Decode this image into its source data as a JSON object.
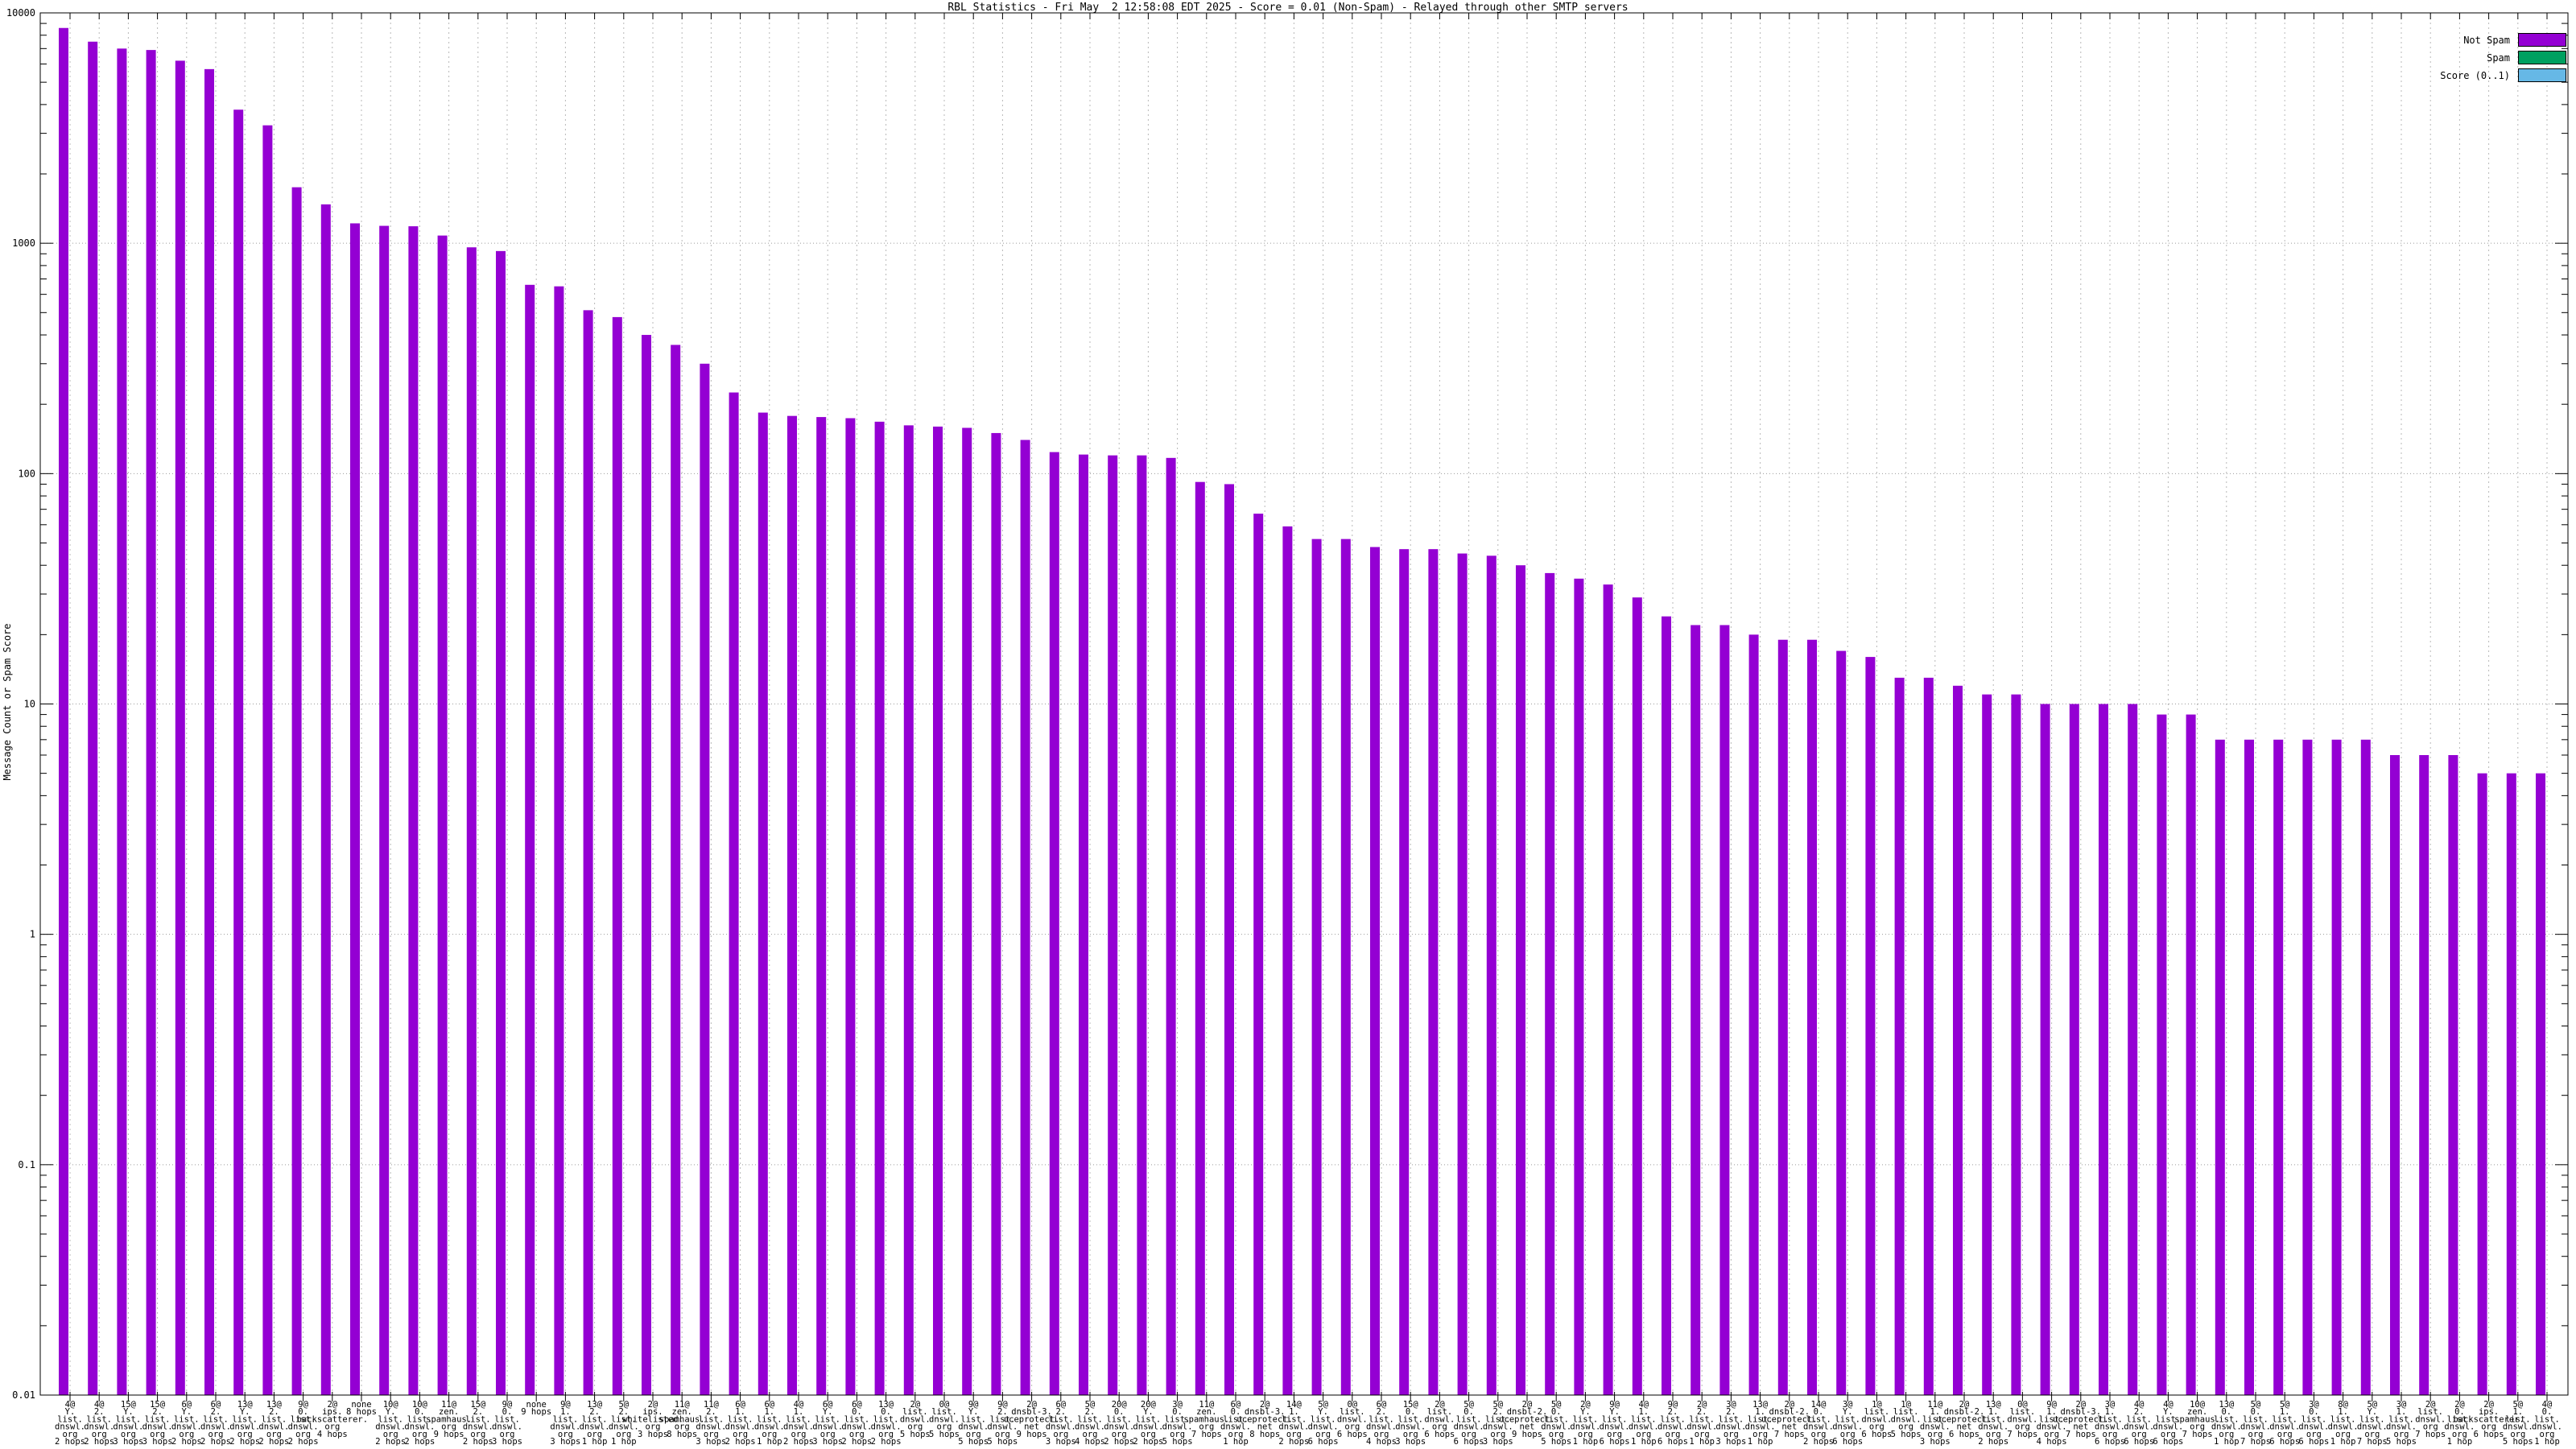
{
  "title": "RBL Statistics - Fri May  2 12:58:08 EDT 2025 - Score = 0.01 (Non-Spam) - Relayed through other SMTP servers",
  "y_axis": {
    "label": "Message Count or Spam Score",
    "tick_labels": [
      "10000",
      "1000",
      "100",
      "10",
      "1",
      "0.1",
      "0.01"
    ],
    "min": 0.01,
    "max": 10000,
    "scale": "log"
  },
  "legend": [
    {
      "label": "Not Spam",
      "color": "#9400d3"
    },
    {
      "label": "Spam",
      "color": "#00a060"
    },
    {
      "label": "Score (0..1)",
      "color": "#66b8e6"
    }
  ],
  "chart_data": {
    "type": "bar",
    "title": "RBL Statistics - Fri May  2 12:58:08 EDT 2025 - Score = 0.01 (Non-Spam) - Relayed through other SMTP servers",
    "ylabel": "Message Count or Spam Score",
    "yscale": "log",
    "ylim": [
      0.01,
      10000
    ],
    "grid": true,
    "legend_position": "top-right",
    "series_meta": {
      "not_spam_color": "#9400d3",
      "spam_color": "#00a060",
      "score_color": "#66b8e6",
      "spam_constant_value": 0,
      "score_constant_value": 0.01
    },
    "bars": [
      {
        "label_lines": [
          "4@",
          "Y.",
          "list.",
          "dnswl.",
          "org",
          "2 hops"
        ],
        "value": 8600
      },
      {
        "label_lines": [
          "4@",
          "2.",
          "list.",
          "dnswl.",
          "org",
          "2 hops"
        ],
        "value": 7500
      },
      {
        "label_lines": [
          "15@",
          "Y.",
          "list.",
          "dnswl.",
          "org",
          "3 hops"
        ],
        "value": 7000
      },
      {
        "label_lines": [
          "15@",
          "2.",
          "list.",
          "dnswl.",
          "org",
          "3 hops"
        ],
        "value": 6900
      },
      {
        "label_lines": [
          "6@",
          "Y.",
          "list.",
          "dnswl.",
          "org",
          "2 hops"
        ],
        "value": 6200
      },
      {
        "label_lines": [
          "6@",
          "2.",
          "list.",
          "dnswl.",
          "org",
          "2 hops"
        ],
        "value": 5700
      },
      {
        "label_lines": [
          "13@",
          "Y.",
          "list.",
          "dnswl.",
          "org",
          "2 hops"
        ],
        "value": 3800
      },
      {
        "label_lines": [
          "13@",
          "2.",
          "list.",
          "dnswl.",
          "org",
          "2 hops"
        ],
        "value": 3250
      },
      {
        "label_lines": [
          "9@",
          "0.",
          "list.",
          "dnswl.",
          "org",
          "2 hops"
        ],
        "value": 1750
      },
      {
        "label_lines": [
          "2@",
          "ips.",
          "backscatterer.",
          "org",
          "4 hops"
        ],
        "value": 1475
      },
      {
        "label_lines": [
          "none",
          "8 hops"
        ],
        "value": 1220
      },
      {
        "label_lines": [
          "10@",
          "Y.",
          "list.",
          "dnswl.",
          "org",
          "2 hops"
        ],
        "value": 1190
      },
      {
        "label_lines": [
          "10@",
          "0.",
          "list.",
          "dnswl.",
          "org",
          "2 hops"
        ],
        "value": 1185
      },
      {
        "label_lines": [
          "11@",
          "zen.",
          "spamhaus.",
          "org",
          "9 hops"
        ],
        "value": 1080
      },
      {
        "label_lines": [
          "15@",
          "2.",
          "list.",
          "dnswl.",
          "org",
          "2 hops"
        ],
        "value": 960
      },
      {
        "label_lines": [
          "9@",
          "0.",
          "list.",
          "dnswl.",
          "org",
          "3 hops"
        ],
        "value": 925
      },
      {
        "label_lines": [
          "none",
          "9 hops"
        ],
        "value": 660
      },
      {
        "label_lines": [
          "9@",
          "1.",
          "list.",
          "dnswl.",
          "org",
          "3 hops"
        ],
        "value": 650
      },
      {
        "label_lines": [
          "13@",
          "2.",
          "list.",
          "dnswl.",
          "org",
          "1 hop"
        ],
        "value": 512
      },
      {
        "label_lines": [
          "5@",
          "2.",
          "list.",
          "dnswl.",
          "org",
          "1 hop"
        ],
        "value": 478
      },
      {
        "label_lines": [
          "2@",
          "ips.",
          "whitelisted.",
          "org",
          "3 hops"
        ],
        "value": 400
      },
      {
        "label_lines": [
          "11@",
          "zen.",
          "spamhaus.",
          "org",
          "8 hops"
        ],
        "value": 362
      },
      {
        "label_lines": [
          "11@",
          "2.",
          "list.",
          "dnswl.",
          "org",
          "3 hops"
        ],
        "value": 300
      },
      {
        "label_lines": [
          "6@",
          "1.",
          "list.",
          "dnswl.",
          "org",
          "2 hops"
        ],
        "value": 225
      },
      {
        "label_lines": [
          "6@",
          "1.",
          "list.",
          "dnswl.",
          "org",
          "1 hop"
        ],
        "value": 184
      },
      {
        "label_lines": [
          "4@",
          "1.",
          "list.",
          "dnswl.",
          "org",
          "2 hops"
        ],
        "value": 178
      },
      {
        "label_lines": [
          "6@",
          "Y.",
          "list.",
          "dnswl.",
          "org",
          "3 hops"
        ],
        "value": 176
      },
      {
        "label_lines": [
          "6@",
          "0.",
          "list.",
          "dnswl.",
          "org",
          "2 hops"
        ],
        "value": 174
      },
      {
        "label_lines": [
          "13@",
          "0.",
          "list.",
          "dnswl.",
          "org",
          "2 hops"
        ],
        "value": 168
      },
      {
        "label_lines": [
          "2@",
          "list.",
          "dnswl.",
          "org",
          "5 hops"
        ],
        "value": 162
      },
      {
        "label_lines": [
          "0@",
          "list.",
          "dnswl.",
          "org",
          "5 hops"
        ],
        "value": 160
      },
      {
        "label_lines": [
          "9@",
          "Y.",
          "list.",
          "dnswl.",
          "org",
          "5 hops"
        ],
        "value": 158
      },
      {
        "label_lines": [
          "9@",
          "2.",
          "list.",
          "dnswl.",
          "org",
          "5 hops"
        ],
        "value": 150
      },
      {
        "label_lines": [
          "2@",
          "dnsbl-3.",
          "uceprotect.",
          "net",
          "9 hops"
        ],
        "value": 140
      },
      {
        "label_lines": [
          "6@",
          "2.",
          "list.",
          "dnswl.",
          "org",
          "3 hops"
        ],
        "value": 124
      },
      {
        "label_lines": [
          "5@",
          "2.",
          "list.",
          "dnswl.",
          "org",
          "4 hops"
        ],
        "value": 121
      },
      {
        "label_lines": [
          "20@",
          "0.",
          "list.",
          "dnswl.",
          "org",
          "2 hops"
        ],
        "value": 120
      },
      {
        "label_lines": [
          "20@",
          "Y.",
          "list.",
          "dnswl.",
          "org",
          "2 hops"
        ],
        "value": 120
      },
      {
        "label_lines": [
          "3@",
          "0.",
          "list.",
          "dnswl.",
          "org",
          "5 hops"
        ],
        "value": 117
      },
      {
        "label_lines": [
          "11@",
          "zen.",
          "spamhaus.",
          "org",
          "7 hops"
        ],
        "value": 92
      },
      {
        "label_lines": [
          "6@",
          "0.",
          "list.",
          "dnswl.",
          "org",
          "1 hop"
        ],
        "value": 90
      },
      {
        "label_lines": [
          "2@",
          "dnsbl-3.",
          "uceprotect.",
          "net",
          "8 hops"
        ],
        "value": 67
      },
      {
        "label_lines": [
          "14@",
          "1.",
          "list.",
          "dnswl.",
          "org",
          "2 hops"
        ],
        "value": 59
      },
      {
        "label_lines": [
          "5@",
          "Y.",
          "list.",
          "dnswl.",
          "org",
          "6 hops"
        ],
        "value": 52
      },
      {
        "label_lines": [
          "0@",
          "list.",
          "dnswl.",
          "org",
          "6 hops"
        ],
        "value": 52
      },
      {
        "label_lines": [
          "6@",
          "2.",
          "list.",
          "dnswl.",
          "org",
          "4 hops"
        ],
        "value": 48
      },
      {
        "label_lines": [
          "15@",
          "0.",
          "list.",
          "dnswl.",
          "org",
          "3 hops"
        ],
        "value": 47
      },
      {
        "label_lines": [
          "2@",
          "list.",
          "dnswl.",
          "org",
          "6 hops"
        ],
        "value": 47
      },
      {
        "label_lines": [
          "5@",
          "0.",
          "list.",
          "dnswl.",
          "org",
          "6 hops"
        ],
        "value": 45
      },
      {
        "label_lines": [
          "5@",
          "2.",
          "list.",
          "dnswl.",
          "org",
          "3 hops"
        ],
        "value": 44
      },
      {
        "label_lines": [
          "2@",
          "dnsbl-2.",
          "uceprotect.",
          "net",
          "9 hops"
        ],
        "value": 40
      },
      {
        "label_lines": [
          "5@",
          "0.",
          "list.",
          "dnswl.",
          "org",
          "5 hops"
        ],
        "value": 37
      },
      {
        "label_lines": [
          "2@",
          "Y.",
          "list.",
          "dnswl.",
          "org",
          "1 hop"
        ],
        "value": 35
      },
      {
        "label_lines": [
          "9@",
          "Y.",
          "list.",
          "dnswl.",
          "org",
          "6 hops"
        ],
        "value": 33
      },
      {
        "label_lines": [
          "4@",
          "1.",
          "list.",
          "dnswl.",
          "org",
          "1 hop"
        ],
        "value": 29
      },
      {
        "label_lines": [
          "9@",
          "2.",
          "list.",
          "dnswl.",
          "org",
          "6 hops"
        ],
        "value": 24
      },
      {
        "label_lines": [
          "2@",
          "2.",
          "list.",
          "dnswl.",
          "org",
          "1 hop"
        ],
        "value": 22
      },
      {
        "label_lines": [
          "3@",
          "2.",
          "list.",
          "dnswl.",
          "org",
          "3 hops"
        ],
        "value": 22
      },
      {
        "label_lines": [
          "13@",
          "1.",
          "list.",
          "dnswl.",
          "org",
          "1 hop"
        ],
        "value": 20
      },
      {
        "label_lines": [
          "2@",
          "dnsbl-2.",
          "uceprotect.",
          "net",
          "7 hops"
        ],
        "value": 19
      },
      {
        "label_lines": [
          "14@",
          "0.",
          "list.",
          "dnswl.",
          "org",
          "2 hops"
        ],
        "value": 19
      },
      {
        "label_lines": [
          "3@",
          "Y.",
          "list.",
          "dnswl.",
          "org",
          "6 hops"
        ],
        "value": 17
      },
      {
        "label_lines": [
          "1@",
          "list.",
          "dnswl.",
          "org",
          "6 hops"
        ],
        "value": 16
      },
      {
        "label_lines": [
          "1@",
          "list.",
          "dnswl.",
          "org",
          "5 hops"
        ],
        "value": 13
      },
      {
        "label_lines": [
          "11@",
          "1.",
          "list.",
          "dnswl.",
          "org",
          "3 hops"
        ],
        "value": 13
      },
      {
        "label_lines": [
          "2@",
          "dnsbl-2.",
          "uceprotect.",
          "net",
          "6 hops"
        ],
        "value": 12
      },
      {
        "label_lines": [
          "13@",
          "1.",
          "list.",
          "dnswl.",
          "org",
          "2 hops"
        ],
        "value": 11
      },
      {
        "label_lines": [
          "0@",
          "list.",
          "dnswl.",
          "org",
          "7 hops"
        ],
        "value": 11
      },
      {
        "label_lines": [
          "9@",
          "1.",
          "list.",
          "dnswl.",
          "org",
          "4 hops"
        ],
        "value": 10
      },
      {
        "label_lines": [
          "2@",
          "dnsbl-3.",
          "uceprotect.",
          "net",
          "7 hops"
        ],
        "value": 10
      },
      {
        "label_lines": [
          "3@",
          "1.",
          "list.",
          "dnswl.",
          "org",
          "6 hops"
        ],
        "value": 10
      },
      {
        "label_lines": [
          "4@",
          "2.",
          "list.",
          "dnswl.",
          "org",
          "6 hops"
        ],
        "value": 10
      },
      {
        "label_lines": [
          "4@",
          "Y.",
          "list.",
          "dnswl.",
          "org",
          "6 hops"
        ],
        "value": 9
      },
      {
        "label_lines": [
          "10@",
          "zen.",
          "spamhaus.",
          "org",
          "7 hops"
        ],
        "value": 9
      },
      {
        "label_lines": [
          "13@",
          "0.",
          "list.",
          "dnswl.",
          "org",
          "1 hop"
        ],
        "value": 7
      },
      {
        "label_lines": [
          "5@",
          "0.",
          "list.",
          "dnswl.",
          "org",
          "7 hops"
        ],
        "value": 7
      },
      {
        "label_lines": [
          "5@",
          "1.",
          "list.",
          "dnswl.",
          "org",
          "6 hops"
        ],
        "value": 7
      },
      {
        "label_lines": [
          "3@",
          "0.",
          "list.",
          "dnswl.",
          "org",
          "6 hops"
        ],
        "value": 7
      },
      {
        "label_lines": [
          "8@",
          "1.",
          "list.",
          "dnswl.",
          "org",
          "1 hop"
        ],
        "value": 7
      },
      {
        "label_lines": [
          "5@",
          "Y.",
          "list.",
          "dnswl.",
          "org",
          "7 hops"
        ],
        "value": 7
      },
      {
        "label_lines": [
          "3@",
          "1.",
          "list.",
          "dnswl.",
          "org",
          "5 hops"
        ],
        "value": 6
      },
      {
        "label_lines": [
          "2@",
          "list.",
          "dnswl.",
          "org",
          "7 hops"
        ],
        "value": 6
      },
      {
        "label_lines": [
          "2@",
          "0.",
          "list.",
          "dnswl.",
          "org",
          "1 hop"
        ],
        "value": 6
      },
      {
        "label_lines": [
          "2@",
          "ips.",
          "backscatterer.",
          "org",
          "6 hops"
        ],
        "value": 5
      },
      {
        "label_lines": [
          "5@",
          "1.",
          "list.",
          "dnswl.",
          "org",
          "5 hops"
        ],
        "value": 5
      },
      {
        "label_lines": [
          "4@",
          "0.",
          "list.",
          "dnswl.",
          "org",
          "1 hop"
        ],
        "value": 5
      }
    ]
  }
}
